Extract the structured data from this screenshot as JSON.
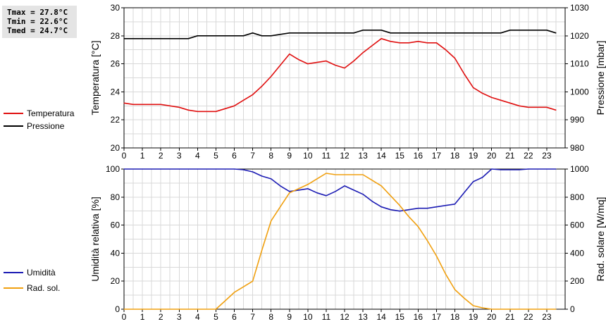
{
  "stats": {
    "tmax": "Tmax = 27.8°C",
    "tmin": "Tmin = 22.6°C",
    "tmed": "Tmed = 24.7°C"
  },
  "legend_top": [
    {
      "label": "Temperatura",
      "color": "#e01010"
    },
    {
      "label": "Pressione",
      "color": "#000000"
    }
  ],
  "legend_bottom": [
    {
      "label": "Umidità",
      "color": "#1c1cb4"
    },
    {
      "label": "Rad. sol.",
      "color": "#f0a010"
    }
  ],
  "chart_data": [
    {
      "type": "line",
      "ylabel_left": "Temperatura [°C]",
      "ylabel_right": "Pressione [mbar]",
      "xlim": [
        0,
        24
      ],
      "ylim_left": [
        20,
        30
      ],
      "ylim_right": [
        980,
        1030
      ],
      "x_ticks": [
        "0",
        "1",
        "2",
        "3",
        "4",
        "5",
        "6",
        "7",
        "8",
        "9",
        "10",
        "11",
        "12",
        "13",
        "14",
        "15",
        "16",
        "17",
        "18",
        "19",
        "20",
        "21",
        "22",
        "23"
      ],
      "y_ticks_left": [
        "20",
        "22",
        "24",
        "26",
        "28",
        "30"
      ],
      "y_ticks_right": [
        "980",
        "990",
        "1000",
        "1010",
        "1020",
        "1030"
      ],
      "grid": true,
      "series": [
        {
          "name": "Temperatura",
          "axis": "left",
          "color": "#e01010",
          "x": [
            0,
            0.5,
            1,
            1.5,
            2,
            2.5,
            3,
            3.5,
            4,
            4.5,
            5,
            5.5,
            6,
            6.5,
            7,
            7.5,
            8,
            8.5,
            9,
            9.25,
            9.5,
            10,
            10.5,
            11,
            11.5,
            12,
            12.5,
            13,
            13.5,
            14,
            14.5,
            15,
            15.5,
            16,
            16.5,
            17,
            17.5,
            18,
            18.5,
            19,
            19.5,
            20,
            20.5,
            21,
            21.5,
            22,
            22.5,
            23,
            23.5
          ],
          "values": [
            23.2,
            23.1,
            23.1,
            23.1,
            23.1,
            23.0,
            22.9,
            22.7,
            22.6,
            22.6,
            22.6,
            22.8,
            23.0,
            23.4,
            23.8,
            24.4,
            25.1,
            25.9,
            26.7,
            26.5,
            26.3,
            26.0,
            26.1,
            26.2,
            25.9,
            25.7,
            26.2,
            26.8,
            27.3,
            27.8,
            27.6,
            27.5,
            27.5,
            27.6,
            27.5,
            27.5,
            27.0,
            26.4,
            25.3,
            24.3,
            23.9,
            23.6,
            23.4,
            23.2,
            23.0,
            22.9,
            22.9,
            22.9,
            22.7
          ]
        },
        {
          "name": "Pressione",
          "axis": "right",
          "color": "#000000",
          "x": [
            0,
            1,
            2,
            3,
            3.5,
            4,
            5,
            6,
            6.5,
            7,
            7.5,
            8,
            9,
            10,
            11,
            12,
            12.5,
            13,
            14,
            14.5,
            15,
            16,
            17,
            18,
            19,
            20,
            20.5,
            21,
            22,
            23,
            23.5
          ],
          "values": [
            1019,
            1019,
            1019,
            1019,
            1019,
            1020,
            1020,
            1020,
            1020,
            1021,
            1020,
            1020,
            1021,
            1021,
            1021,
            1021,
            1021,
            1022,
            1022,
            1021,
            1021,
            1021,
            1021,
            1021,
            1021,
            1021,
            1021,
            1022,
            1022,
            1022,
            1021
          ]
        }
      ]
    },
    {
      "type": "line",
      "ylabel_left": "Umidità relativa [%]",
      "ylabel_right": "Rad. solare [W/mq]",
      "xlim": [
        0,
        24
      ],
      "ylim_left": [
        0,
        100
      ],
      "ylim_right": [
        0,
        1000
      ],
      "x_ticks": [
        "0",
        "1",
        "2",
        "3",
        "4",
        "5",
        "6",
        "7",
        "8",
        "9",
        "10",
        "11",
        "12",
        "13",
        "14",
        "15",
        "16",
        "17",
        "18",
        "19",
        "20",
        "21",
        "22",
        "23"
      ],
      "y_ticks_left": [
        "0",
        "20",
        "40",
        "60",
        "80",
        "100"
      ],
      "y_ticks_right": [
        "0",
        "200",
        "400",
        "600",
        "800",
        "1000"
      ],
      "grid": true,
      "series": [
        {
          "name": "Umidità",
          "axis": "left",
          "color": "#1c1cb4",
          "x": [
            0,
            1,
            2,
            3,
            4,
            5,
            6,
            6.5,
            7,
            7.5,
            8,
            8.5,
            9,
            9.5,
            10,
            10.5,
            11,
            11.5,
            12,
            12.5,
            13,
            13.5,
            14,
            14.5,
            15,
            15.5,
            16,
            16.5,
            17,
            17.5,
            18,
            18.5,
            19,
            19.5,
            20,
            20.5,
            21,
            21.5,
            22,
            23,
            23.5
          ],
          "values": [
            100,
            100,
            100,
            100,
            100,
            100,
            100,
            99.5,
            98,
            95,
            93,
            88,
            84,
            85,
            86,
            83,
            81,
            84,
            88,
            85,
            82,
            77,
            73,
            71,
            70,
            71,
            72,
            72,
            73,
            74,
            75,
            83,
            91,
            94,
            100,
            99.5,
            99.5,
            99.5,
            100,
            100,
            100
          ]
        },
        {
          "name": "Rad. sol.",
          "axis": "right",
          "color": "#f0a010",
          "x": [
            0,
            1,
            2,
            3,
            4,
            5,
            5.5,
            6,
            6.5,
            7,
            7.5,
            8,
            8.5,
            9,
            9.5,
            10,
            10.5,
            11,
            11.5,
            12,
            12.5,
            13,
            13.5,
            14,
            14.5,
            15,
            15.5,
            16,
            16.5,
            17,
            17.5,
            18,
            18.5,
            19,
            19.5,
            20,
            21,
            22,
            23,
            23.5
          ],
          "values": [
            0,
            0,
            0,
            0,
            0,
            0,
            60,
            120,
            160,
            200,
            420,
            630,
            730,
            830,
            860,
            890,
            930,
            970,
            960,
            960,
            960,
            960,
            920,
            880,
            810,
            740,
            660,
            590,
            490,
            380,
            250,
            140,
            80,
            25,
            10,
            0,
            0,
            0,
            0,
            0
          ]
        }
      ]
    }
  ]
}
